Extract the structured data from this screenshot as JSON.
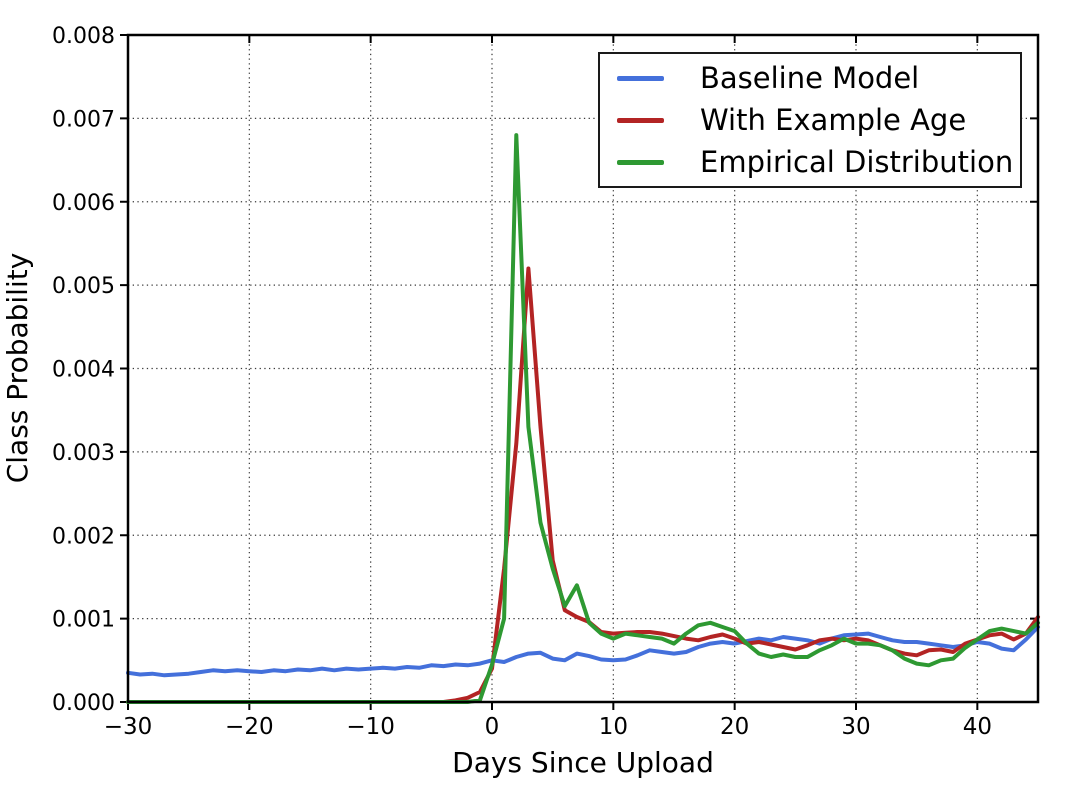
{
  "chart_data": {
    "type": "line",
    "title": "",
    "xlabel": "Days Since Upload",
    "ylabel": "Class Probability",
    "xlim": [
      -30,
      45
    ],
    "ylim": [
      0,
      0.008
    ],
    "xticks": [
      -30,
      -20,
      -10,
      0,
      10,
      20,
      30,
      40
    ],
    "yticks": [
      0.0,
      0.001,
      0.002,
      0.003,
      0.004,
      0.005,
      0.006,
      0.007,
      0.008
    ],
    "grid": true,
    "grid_style": "dotted",
    "legend_position": "upper right",
    "x": [
      -30,
      -29,
      -28,
      -27,
      -26,
      -25,
      -24,
      -23,
      -22,
      -21,
      -20,
      -19,
      -18,
      -17,
      -16,
      -15,
      -14,
      -13,
      -12,
      -11,
      -10,
      -9,
      -8,
      -7,
      -6,
      -5,
      -4,
      -3,
      -2,
      -1,
      0,
      1,
      2,
      3,
      4,
      5,
      6,
      7,
      8,
      9,
      10,
      11,
      12,
      13,
      14,
      15,
      16,
      17,
      18,
      19,
      20,
      21,
      22,
      23,
      24,
      25,
      26,
      27,
      28,
      29,
      30,
      31,
      32,
      33,
      34,
      35,
      36,
      37,
      38,
      39,
      40,
      41,
      42,
      43,
      44,
      45
    ],
    "series": [
      {
        "name": "Baseline Model",
        "color": "#4470DB",
        "values": [
          0.00035,
          0.00033,
          0.00034,
          0.00032,
          0.00033,
          0.00034,
          0.00036,
          0.00038,
          0.00037,
          0.00038,
          0.00037,
          0.00036,
          0.00038,
          0.00037,
          0.00039,
          0.00038,
          0.0004,
          0.00038,
          0.0004,
          0.00039,
          0.0004,
          0.00041,
          0.0004,
          0.00042,
          0.00041,
          0.00044,
          0.00043,
          0.00045,
          0.00044,
          0.00046,
          0.0005,
          0.00048,
          0.00054,
          0.00058,
          0.00059,
          0.00052,
          0.0005,
          0.00058,
          0.00055,
          0.00051,
          0.0005,
          0.00051,
          0.00056,
          0.00062,
          0.0006,
          0.00058,
          0.0006,
          0.00066,
          0.0007,
          0.00072,
          0.0007,
          0.00073,
          0.00076,
          0.00074,
          0.00078,
          0.00076,
          0.00074,
          0.0007,
          0.00076,
          0.0008,
          0.00081,
          0.00082,
          0.00078,
          0.00074,
          0.00072,
          0.00072,
          0.0007,
          0.00068,
          0.00066,
          0.00068,
          0.00072,
          0.0007,
          0.00064,
          0.00062,
          0.00075,
          0.0009
        ]
      },
      {
        "name": "With Example Age",
        "color": "#B32424",
        "values": [
          0,
          0,
          0,
          0,
          0,
          0,
          0,
          0,
          0,
          0,
          0,
          0,
          0,
          0,
          0,
          0,
          0,
          0,
          0,
          0,
          0,
          0,
          0,
          0,
          0,
          0,
          0,
          2e-05,
          5e-05,
          0.00012,
          0.0004,
          0.0016,
          0.0031,
          0.0052,
          0.0033,
          0.0017,
          0.0011,
          0.00102,
          0.00096,
          0.00084,
          0.00082,
          0.00083,
          0.00084,
          0.00084,
          0.00082,
          0.00079,
          0.00076,
          0.00074,
          0.00078,
          0.00081,
          0.00076,
          0.0007,
          0.00072,
          0.00069,
          0.00066,
          0.00063,
          0.00068,
          0.00074,
          0.00076,
          0.00074,
          0.00076,
          0.00074,
          0.00068,
          0.00062,
          0.00058,
          0.00056,
          0.00062,
          0.00063,
          0.0006,
          0.0007,
          0.00075,
          0.0008,
          0.00082,
          0.00075,
          0.00082,
          0.00102
        ]
      },
      {
        "name": "Empirical Distribution",
        "color": "#2E9932",
        "values": [
          0,
          0,
          0,
          0,
          0,
          0,
          0,
          0,
          0,
          0,
          0,
          0,
          0,
          0,
          0,
          0,
          0,
          0,
          0,
          0,
          0,
          0,
          0,
          0,
          0,
          0,
          0,
          0,
          0,
          2e-05,
          0.00045,
          0.001,
          0.0068,
          0.0033,
          0.00215,
          0.0016,
          0.00115,
          0.0014,
          0.00095,
          0.00082,
          0.00076,
          0.00082,
          0.0008,
          0.00078,
          0.00076,
          0.0007,
          0.00082,
          0.00092,
          0.00095,
          0.0009,
          0.00085,
          0.0007,
          0.00058,
          0.00054,
          0.00057,
          0.00054,
          0.00054,
          0.00062,
          0.00068,
          0.00076,
          0.0007,
          0.0007,
          0.00068,
          0.00062,
          0.00052,
          0.00046,
          0.00044,
          0.0005,
          0.00052,
          0.00065,
          0.00075,
          0.00085,
          0.00088,
          0.00085,
          0.00082,
          0.00095
        ]
      }
    ]
  }
}
